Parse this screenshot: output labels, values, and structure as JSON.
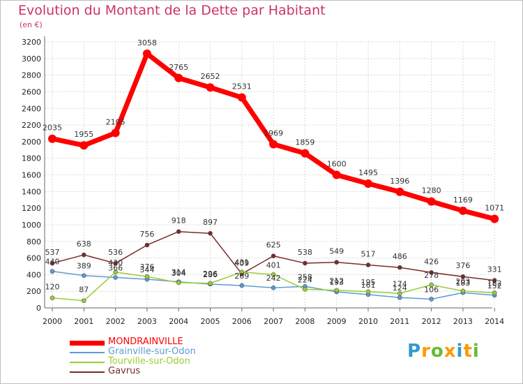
{
  "chart_data": {
    "type": "line",
    "title": "Evolution du Montant de la Dette par Habitant",
    "subtitle": "(en €)",
    "categories": [
      "2000",
      "2001",
      "2002",
      "2003",
      "2004",
      "2005",
      "2006",
      "2007",
      "2008",
      "2009",
      "2010",
      "2011",
      "2012",
      "2013",
      "2014"
    ],
    "ylim": [
      0,
      3200
    ],
    "yticks": [
      0,
      200,
      400,
      600,
      800,
      1000,
      1200,
      1400,
      1600,
      1800,
      2000,
      2200,
      2400,
      2600,
      2800,
      3000,
      3200
    ],
    "grid": true,
    "legend_position": "bottom-left",
    "series": [
      {
        "name": "MONDRAINVILLE",
        "color": "#ff0000",
        "values": [
          2035,
          1955,
          2105,
          3058,
          2765,
          2652,
          2531,
          1969,
          1859,
          1600,
          1495,
          1396,
          1280,
          1169,
          1071
        ],
        "labels": [
          "2035",
          "1955",
          "2105",
          "3058",
          "2765",
          "2652",
          "2531",
          "1969",
          "1859",
          "1600",
          "1495",
          "1396",
          "1280",
          "1169",
          "1071"
        ]
      },
      {
        "name": "Grainville-sur-Odon",
        "color": "#5b9bd5",
        "values": [
          440,
          389,
          366,
          344,
          314,
          286,
          269,
          242,
          258,
          193,
          161,
          124,
          106,
          183,
          152
        ],
        "labels": [
          "440",
          "389",
          "366",
          "344",
          "314",
          "286",
          "269",
          "242",
          "258",
          "193",
          "161",
          "124",
          "106",
          "183",
          "152"
        ]
      },
      {
        "name": "Tourville-sur-Odon",
        "color": "#99cc33",
        "values": [
          120,
          87,
          430,
          376,
          304,
          296,
          431,
          401,
          224,
          212,
          195,
          174,
          278,
          203,
          182
        ],
        "labels": [
          "120",
          "87",
          "430",
          "376",
          "304",
          "296",
          "431",
          "401",
          "224",
          "212",
          "195",
          "174",
          "278",
          "203",
          "182"
        ]
      },
      {
        "name": "Gavrus",
        "color": "#7a2a2a",
        "values": [
          537,
          638,
          536,
          756,
          918,
          897,
          409,
          625,
          538,
          549,
          517,
          486,
          426,
          376,
          331
        ],
        "labels": [
          "537",
          "638",
          "536",
          "756",
          "918",
          "897",
          "409",
          "625",
          "538",
          "549",
          "517",
          "486",
          "426",
          "376",
          "331"
        ]
      }
    ]
  },
  "logo": {
    "letters": [
      "P",
      "r",
      "o",
      "x",
      "i",
      "t",
      "i"
    ],
    "colors": [
      "#3399cc",
      "#ff9900",
      "#66bb33",
      "#ff9900",
      "#3399cc",
      "#ff9900",
      "#66bb33"
    ]
  }
}
